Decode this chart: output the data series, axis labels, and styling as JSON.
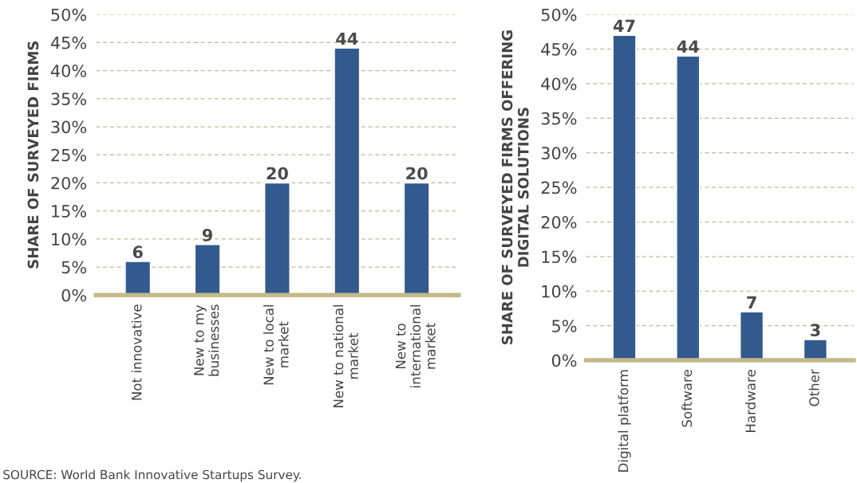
{
  "chart_data": [
    {
      "type": "bar",
      "ylabel": "SHARE OF SURVEYED FIRMS",
      "categories": [
        "Not innovative",
        "New to my\nbusinesses",
        "New to local\nmarket",
        "New to national\nmarket",
        "New to\ninternational\nmarket"
      ],
      "values": [
        6,
        9,
        20,
        44,
        20
      ],
      "color": "#335a8f",
      "data_labels": true,
      "grid": "y",
      "ylim": [
        0,
        50
      ],
      "yticks": [
        {
          "value": 0,
          "label": "0%"
        },
        {
          "value": 5,
          "label": "5%"
        },
        {
          "value": 10,
          "label": "10%"
        },
        {
          "value": 15,
          "label": "15%"
        },
        {
          "value": 20,
          "label": "20%"
        },
        {
          "value": 25,
          "label": "25%"
        },
        {
          "value": 30,
          "label": "30%"
        },
        {
          "value": 35,
          "label": "35%"
        },
        {
          "value": 40,
          "label": "40%"
        },
        {
          "value": 45,
          "label": "45%"
        },
        {
          "value": 50,
          "label": "50%"
        }
      ],
      "annotations": [
        "SOURCE: World Bank Innovative Startups Survey."
      ]
    },
    {
      "type": "bar",
      "ylabel": "SHARE OF SURVEYED FIRMS OFFERING\nDIGITAL SOLUTIONS",
      "categories": [
        "Digital platform",
        "Software",
        "Hardware",
        "Other"
      ],
      "values": [
        47,
        44,
        7,
        3
      ],
      "color": "#335a8f",
      "data_labels": true,
      "grid": "y",
      "ylim": [
        0,
        50
      ],
      "yticks": [
        {
          "value": 0,
          "label": "0%"
        },
        {
          "value": 5,
          "label": "5%"
        },
        {
          "value": 10,
          "label": "10%"
        },
        {
          "value": 15,
          "label": "15%"
        },
        {
          "value": 20,
          "label": "20%"
        },
        {
          "value": 25,
          "label": "25%"
        },
        {
          "value": 30,
          "label": "30%"
        },
        {
          "value": 35,
          "label": "35%"
        },
        {
          "value": 40,
          "label": "40%"
        },
        {
          "value": 45,
          "label": "45%"
        },
        {
          "value": 50,
          "label": "50%"
        }
      ]
    }
  ]
}
